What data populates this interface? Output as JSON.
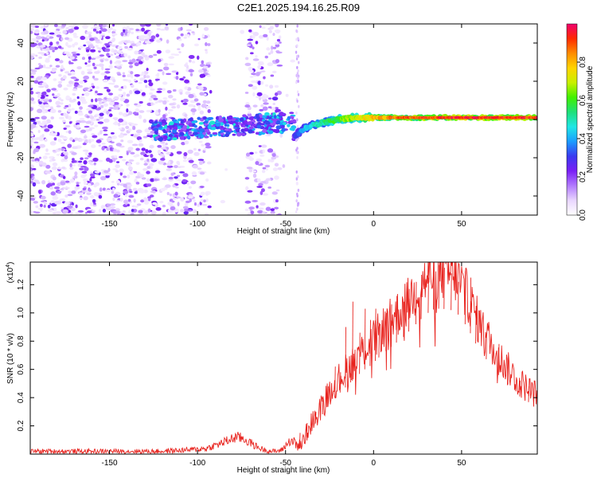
{
  "title": "C2E1.2025.194.16.25.R09",
  "chart_data": [
    {
      "type": "heatmap",
      "xlabel": "Height of straight line (km)",
      "ylabel": "Frequency (Hz)",
      "xlim": [
        -195,
        93
      ],
      "ylim": [
        -50,
        50
      ],
      "x_ticks": [
        -150,
        -100,
        -50,
        0,
        50
      ],
      "y_ticks": [
        -40,
        -20,
        0,
        20,
        40
      ],
      "colorbar": {
        "label": "Normalized spectral amplitude",
        "range": [
          0,
          1
        ],
        "ticks": [
          "0.0",
          "0.2",
          "0.4",
          "0.6",
          "0.8"
        ],
        "tick_values": [
          0.0,
          0.2,
          0.4,
          0.6,
          0.8
        ],
        "colors": [
          "#ffffff",
          "#e9d6ff",
          "#b27bff",
          "#7a20f5",
          "#3a3af0",
          "#1b9cff",
          "#1fe6e6",
          "#1ee07a",
          "#41f000",
          "#c8f000",
          "#ffd400",
          "#ff8c00",
          "#ff2a00",
          "#f0006e"
        ]
      },
      "tone_ridge": {
        "x": [
          -45,
          -40,
          -35,
          -30,
          -25,
          -20,
          -15,
          -10,
          -5,
          0,
          10,
          20,
          40,
          60,
          93
        ],
        "frequency": [
          -9,
          -5,
          -3,
          -2,
          -1,
          0,
          0.5,
          0.8,
          1,
          1,
          1,
          1,
          1,
          1,
          1
        ],
        "amplitude": [
          0.3,
          0.45,
          0.5,
          0.55,
          0.6,
          0.65,
          0.7,
          0.75,
          0.8,
          0.85,
          0.9,
          0.95,
          1,
          1,
          1
        ]
      }
    },
    {
      "type": "line",
      "xlabel": "Height of straight line (km)",
      "ylabel": "SNR (10 * v/v)",
      "yscale_label": "(x10",
      "yscale_exponent": "4",
      "xlim": [
        -195,
        93
      ],
      "ylim": [
        0,
        1.36
      ],
      "x_ticks": [
        -150,
        -100,
        -50,
        0,
        50
      ],
      "y_ticks": [
        0.2,
        0.4,
        0.6,
        0.8,
        1.0,
        1.2
      ],
      "color": "#e8231e",
      "series": [
        {
          "x": [
            -195,
            -180,
            -160,
            -140,
            -120,
            -105,
            -95,
            -88,
            -82,
            -78,
            -74,
            -70,
            -66,
            -62,
            -58,
            -55,
            -52,
            -50,
            -47,
            -44,
            -42,
            -40,
            -37,
            -34,
            -30,
            -26,
            -22,
            -18,
            -14,
            -10,
            -6,
            -2,
            2,
            6,
            10,
            14,
            18,
            22,
            26,
            30,
            34,
            38,
            42,
            46,
            50,
            54,
            58,
            62,
            66,
            70,
            74,
            78,
            82,
            86,
            90,
            93
          ],
          "y": [
            0.02,
            0.02,
            0.02,
            0.02,
            0.02,
            0.03,
            0.04,
            0.07,
            0.1,
            0.12,
            0.11,
            0.08,
            0.05,
            0.03,
            0.02,
            0.02,
            0.03,
            0.06,
            0.1,
            0.08,
            0.05,
            0.1,
            0.18,
            0.25,
            0.33,
            0.42,
            0.5,
            0.56,
            0.62,
            0.68,
            0.74,
            0.78,
            0.84,
            0.9,
            0.95,
            1.0,
            1.05,
            1.12,
            1.18,
            1.24,
            1.28,
            1.29,
            1.28,
            1.27,
            1.2,
            1.1,
            0.98,
            0.88,
            0.8,
            0.72,
            0.64,
            0.58,
            0.52,
            0.48,
            0.44,
            0.42
          ]
        }
      ],
      "spikes": {
        "x": [
          -42,
          -38,
          -33,
          -29,
          -26,
          -22,
          -19,
          -16,
          -13,
          -12,
          -8,
          -5,
          -2,
          1,
          3,
          7,
          10,
          13,
          17,
          20,
          24,
          27,
          31,
          34,
          37,
          40,
          44,
          48,
          52,
          55,
          58,
          64,
          71,
          76,
          83,
          88
        ],
        "y": [
          0.15,
          0.22,
          0.3,
          0.38,
          0.48,
          0.62,
          0.58,
          0.9,
          0.7,
          1.08,
          0.86,
          1.03,
          0.95,
          1.03,
          0.93,
          1.0,
          1.06,
          1.12,
          1.08,
          1.17,
          1.22,
          1.27,
          1.25,
          1.3,
          1.34,
          1.32,
          1.28,
          1.22,
          1.3,
          1.25,
          1.05,
          0.86,
          0.78,
          0.6,
          0.52,
          0.48
        ]
      }
    }
  ]
}
